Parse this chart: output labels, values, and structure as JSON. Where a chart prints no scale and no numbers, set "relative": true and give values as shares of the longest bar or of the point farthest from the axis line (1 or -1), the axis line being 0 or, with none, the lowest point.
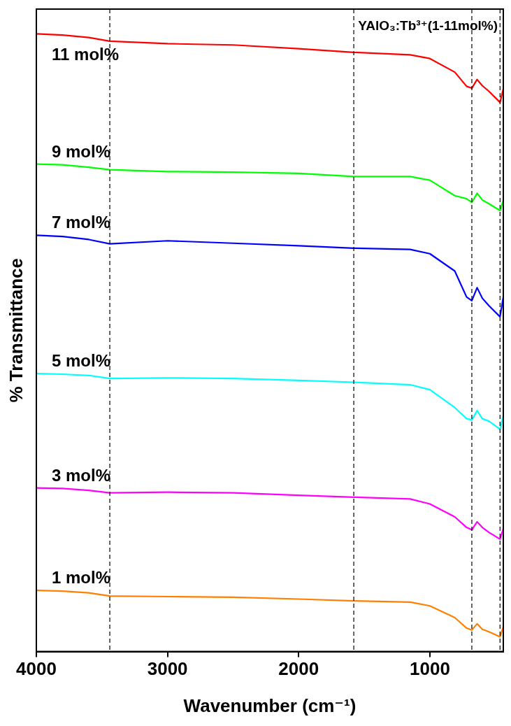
{
  "chart_data": {
    "type": "line",
    "xlabel": "Wavenumber (cm⁻¹)",
    "ylabel": "% Transmittance",
    "relative": true,
    "annotations": [
      "YAlO₃:Tb³⁺(1-11mol%)"
    ],
    "x": [
      4000,
      3800,
      3600,
      3440,
      3000,
      2500,
      2000,
      1580,
      1150,
      1000,
      810,
      720,
      680,
      640,
      600,
      550,
      465,
      440
    ],
    "xlim": [
      4000,
      440
    ],
    "xticks": [
      4000,
      3000,
      2000,
      1000
    ],
    "series": [
      {
        "name": "11 mol%",
        "color": "#ff0000",
        "values": [
          1.0,
          0.998,
          0.994,
          0.988,
          0.984,
          0.982,
          0.976,
          0.97,
          0.966,
          0.96,
          0.938,
          0.915,
          0.912,
          0.926,
          0.916,
          0.907,
          0.889,
          0.911
        ]
      },
      {
        "name": "9 mol%",
        "color": "#00ff00",
        "values": [
          0.789,
          0.788,
          0.784,
          0.78,
          0.777,
          0.776,
          0.774,
          0.769,
          0.769,
          0.763,
          0.738,
          0.733,
          0.727,
          0.742,
          0.731,
          0.725,
          0.714,
          0.73
        ]
      },
      {
        "name": "7 mol%",
        "color": "#0000ff",
        "values": [
          0.674,
          0.672,
          0.667,
          0.66,
          0.665,
          0.661,
          0.657,
          0.653,
          0.651,
          0.644,
          0.616,
          0.574,
          0.568,
          0.589,
          0.572,
          0.56,
          0.542,
          0.574
        ]
      },
      {
        "name": "5 mol%",
        "color": "#00ffff",
        "values": [
          0.45,
          0.449,
          0.447,
          0.442,
          0.443,
          0.442,
          0.439,
          0.436,
          0.432,
          0.424,
          0.395,
          0.377,
          0.375,
          0.39,
          0.377,
          0.373,
          0.36,
          0.381
        ]
      },
      {
        "name": "3 mol%",
        "color": "#ff00ff",
        "values": [
          0.265,
          0.264,
          0.261,
          0.257,
          0.258,
          0.257,
          0.253,
          0.25,
          0.247,
          0.239,
          0.218,
          0.201,
          0.197,
          0.21,
          0.201,
          0.193,
          0.182,
          0.199
        ]
      },
      {
        "name": "1 mol%",
        "color": "#ff8000",
        "values": [
          0.099,
          0.098,
          0.095,
          0.09,
          0.089,
          0.088,
          0.085,
          0.082,
          0.08,
          0.074,
          0.055,
          0.038,
          0.035,
          0.045,
          0.036,
          0.032,
          0.024,
          0.04
        ]
      }
    ],
    "ref_lines": [
      {
        "axis": "x",
        "value": 3440,
        "color": "#000000",
        "line_style": "dashed"
      },
      {
        "axis": "x",
        "value": 1580,
        "color": "#000000",
        "line_style": "dashed"
      },
      {
        "axis": "x",
        "value": 680,
        "color": "#000000",
        "line_style": "dashed"
      },
      {
        "axis": "x",
        "value": 465,
        "color": "#000000",
        "line_style": "dashed"
      }
    ],
    "grid": false,
    "legend": false,
    "marker": "none",
    "line_style": "solid"
  }
}
